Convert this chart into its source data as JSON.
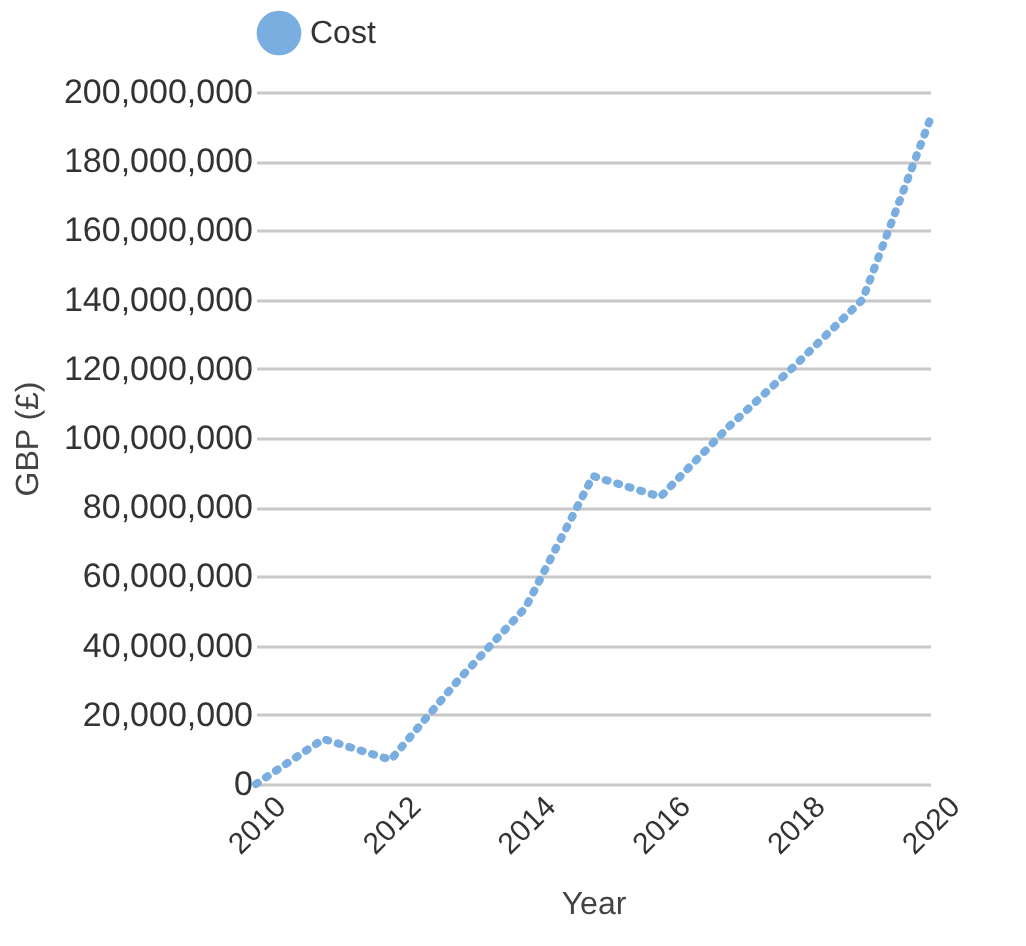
{
  "chart_data": {
    "type": "line",
    "xlabel": "Year",
    "ylabel": "GBP (£)",
    "x": [
      2010,
      2011,
      2012,
      2013,
      2014,
      2015,
      2016,
      2017,
      2018,
      2019,
      2020
    ],
    "series": [
      {
        "name": "Cost",
        "color": "#7aaee0",
        "values": [
          0,
          13000000,
          7000000,
          30000000,
          51000000,
          89000000,
          83000000,
          103000000,
          121000000,
          140000000,
          192000000
        ]
      }
    ],
    "xlim": [
      2010,
      2020
    ],
    "xticks": [
      2010,
      2012,
      2014,
      2016,
      2018,
      2020
    ],
    "ylim": [
      0,
      200000000
    ],
    "yticks": [
      0,
      {
        "value": 20000000,
        "label": "20,000,000"
      },
      {
        "value": 40000000,
        "label": "40,000,000"
      },
      {
        "value": 60000000,
        "label": "60,000,000"
      },
      {
        "value": 80000000,
        "label": "80,000,000"
      },
      {
        "value": 100000000,
        "label": "100,000,000"
      },
      {
        "value": 120000000,
        "label": "120,000,000"
      },
      {
        "value": 140000000,
        "label": "140,000,000"
      },
      {
        "value": 160000000,
        "label": "160,000,000"
      },
      {
        "value": 180000000,
        "label": "180,000,000"
      },
      {
        "value": 200000000,
        "label": "200,000,000"
      }
    ],
    "grid": "y",
    "legend": "top",
    "line_style": "dotted",
    "marker": "none"
  }
}
